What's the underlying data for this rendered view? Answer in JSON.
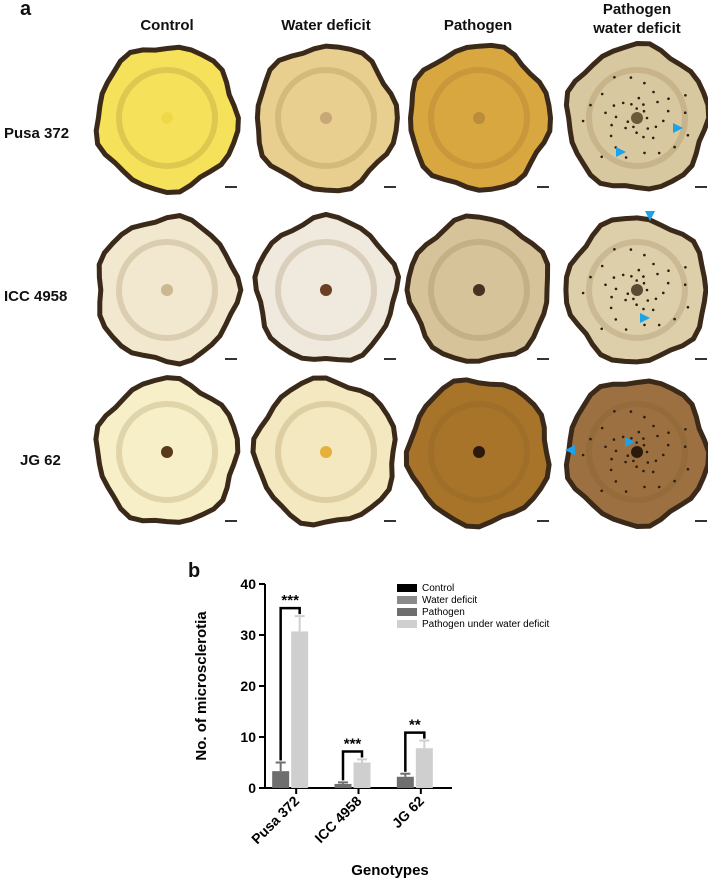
{
  "panel_a": {
    "label": "a",
    "column_headers": [
      "Control",
      "Water deficit",
      "Pathogen",
      "Pathogen\nwater deficit"
    ],
    "row_headers": [
      "Pusa 372",
      "ICC 4958",
      "JG 62"
    ],
    "colors": {
      "rind": "#3b2a1a",
      "arrowhead": "#1aa3e8",
      "fills": [
        [
          "#f5e25a",
          "#e8cf8f",
          "#d9a740",
          "#d8c8a0"
        ],
        [
          "#f1e8cf",
          "#f0e9de",
          "#d6c39a",
          "#dccfaa"
        ],
        [
          "#f6efc7",
          "#f3e8bf",
          "#a8742a",
          "#9c7040"
        ]
      ],
      "centers": [
        [
          "#f0d948",
          "#c7a776",
          "#b88d3c",
          "#6a5a3a"
        ],
        [
          "#c9b892",
          "#6a3f22",
          "#4a3020",
          "#5a4a35"
        ],
        [
          "#5a3a1a",
          "#e6b03a",
          "#2b1a0c",
          "#2b1a0c"
        ]
      ]
    }
  },
  "panel_b": {
    "label": "b"
  },
  "chart_data": {
    "type": "bar",
    "categories": [
      "Pusa 372",
      "ICC 4958",
      "JG 62"
    ],
    "series": [
      {
        "name": "Control",
        "values": [
          0,
          0,
          0
        ],
        "errors": [
          0,
          0,
          0
        ],
        "color": "#000000"
      },
      {
        "name": "Water deficit",
        "values": [
          0,
          0,
          0
        ],
        "errors": [
          0,
          0,
          0
        ],
        "color": "#8a8a8a"
      },
      {
        "name": "Pathogen",
        "values": [
          3.3,
          0.8,
          2.2
        ],
        "errors": [
          1.7,
          0.3,
          0.6
        ],
        "color": "#6e6e6e"
      },
      {
        "name": "Pathogen under water deficit",
        "values": [
          30.7,
          5.0,
          7.8
        ],
        "errors": [
          3.0,
          0.6,
          1.5
        ],
        "color": "#cfcfcf"
      }
    ],
    "significance": [
      "***",
      "***",
      "**"
    ],
    "xlabel": "Genotypes",
    "ylabel": "No. of microsclerotia",
    "ylim": [
      0,
      40
    ],
    "yticks": [
      0,
      10,
      20,
      30,
      40
    ],
    "legend_position": "top-right",
    "grid": false
  }
}
